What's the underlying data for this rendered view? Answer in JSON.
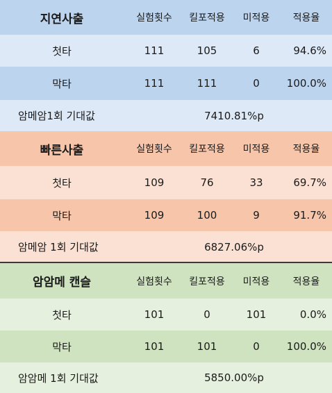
{
  "sections": [
    {
      "title": "지연사출",
      "headers": [
        "실험횟수",
        "킬포적용",
        "미적용",
        "적용율"
      ],
      "rows": [
        {
          "label": "첫타",
          "values": [
            "111",
            "105",
            "6",
            "94.6%"
          ]
        },
        {
          "label": "막타",
          "values": [
            "111",
            "111",
            "0",
            "100.0%"
          ]
        }
      ],
      "footer_label": "암메암1회 기대값",
      "footer_value": "7410.81%p",
      "colors": {
        "header": "#bcd4ee",
        "row_a": "#dde9f7",
        "row_b": "#bcd4ee",
        "footer": "#dde9f7"
      }
    },
    {
      "title": "빠른사출",
      "headers": [
        "실험횟수",
        "킬포적용",
        "미적용",
        "적용율"
      ],
      "rows": [
        {
          "label": "첫타",
          "values": [
            "109",
            "76",
            "33",
            "69.7%"
          ]
        },
        {
          "label": "막타",
          "values": [
            "109",
            "100",
            "9",
            "91.7%"
          ]
        }
      ],
      "footer_label": "암메암 1회 기대값",
      "footer_value": "6827.06%p",
      "colors": {
        "header": "#f6c5aa",
        "row_a": "#fbe1d3",
        "row_b": "#f6c5aa",
        "footer": "#fbe1d3"
      }
    },
    {
      "title": "암암메 캔슬",
      "headers": [
        "실험횟수",
        "킬포적용",
        "미적용",
        "적용율"
      ],
      "rows": [
        {
          "label": "첫타",
          "values": [
            "101",
            "0",
            "101",
            "0.0%"
          ]
        },
        {
          "label": "막타",
          "values": [
            "101",
            "101",
            "0",
            "100.0%"
          ]
        }
      ],
      "footer_label": "암암메 1회 기대값",
      "footer_value": "5850.00%p",
      "colors": {
        "header": "#cfe3c0",
        "row_a": "#e6f0de",
        "row_b": "#cfe3c0",
        "footer": "#e6f0de"
      }
    }
  ]
}
